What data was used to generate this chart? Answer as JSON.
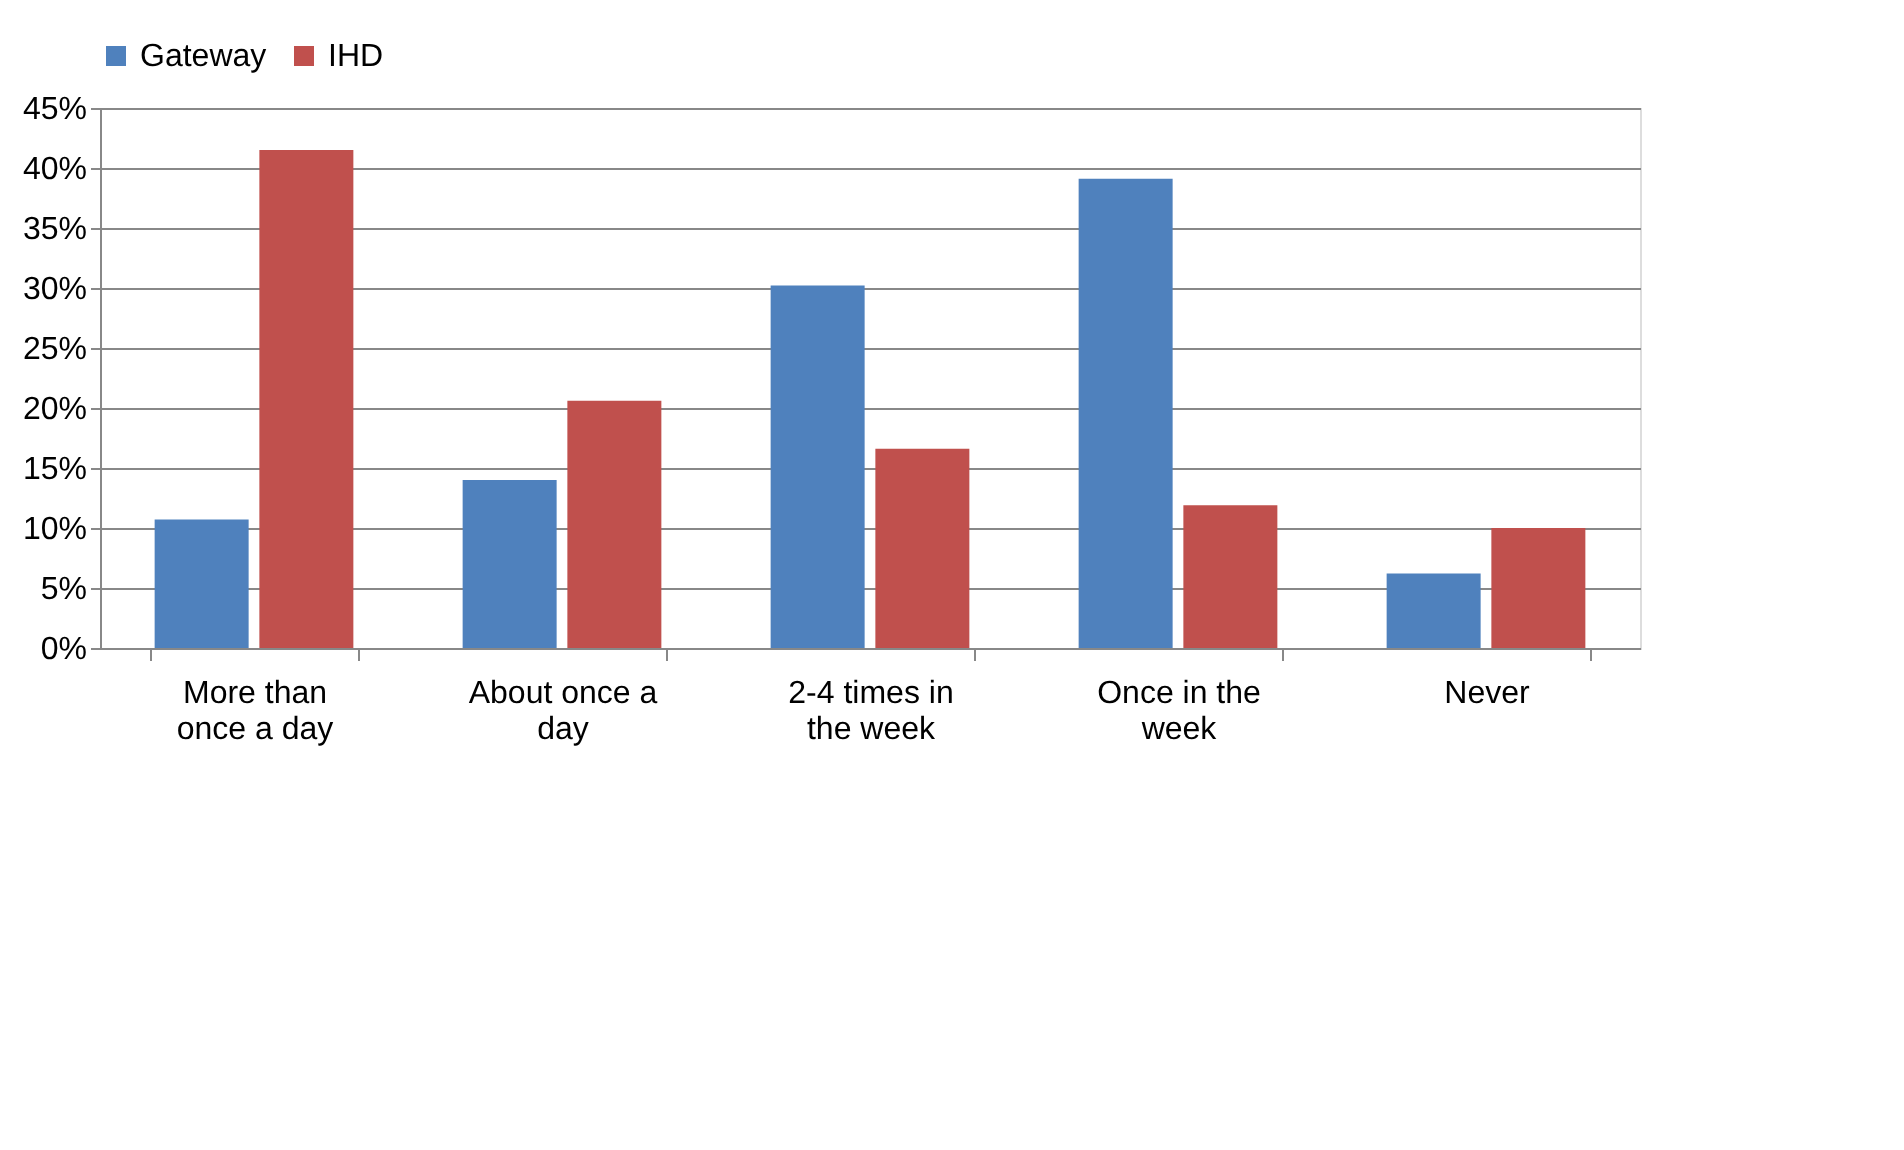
{
  "chart_data": {
    "type": "bar",
    "categories": [
      "More than once a day",
      "About once a day",
      "2-4 times in the week",
      "Once in the week",
      "Never"
    ],
    "series": [
      {
        "name": "Gateway",
        "color": "#4f81bd",
        "values": [
          10.7,
          14.0,
          30.2,
          39.1,
          6.2
        ]
      },
      {
        "name": "IHD",
        "color": "#c0504d",
        "values": [
          41.5,
          20.6,
          16.6,
          11.9,
          10.0
        ]
      }
    ],
    "ylim": [
      0,
      45
    ],
    "yticks": [
      {
        "value": 0,
        "label": "0%"
      },
      {
        "value": 5,
        "label": "5%"
      },
      {
        "value": 10,
        "label": "10%"
      },
      {
        "value": 15,
        "label": "15%"
      },
      {
        "value": 20,
        "label": "20%"
      },
      {
        "value": 25,
        "label": "25%"
      },
      {
        "value": 30,
        "label": "30%"
      },
      {
        "value": 35,
        "label": "35%"
      },
      {
        "value": 40,
        "label": "40%"
      },
      {
        "value": 45,
        "label": "45%"
      }
    ],
    "grid": "y",
    "legend": "top"
  }
}
